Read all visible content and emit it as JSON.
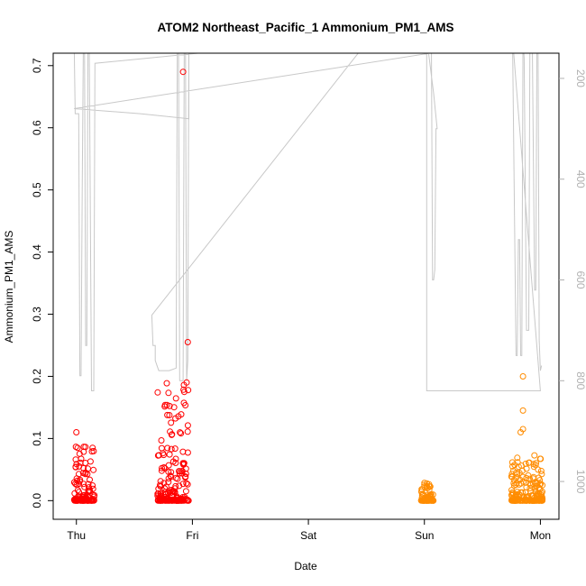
{
  "chart_data": {
    "type": "scatter",
    "title": "ATOM2 Northeast_Pacific_1 Ammonium_PM1_AMS",
    "xlabel": "Date",
    "ylabel": "Ammonium_PM1_AMS",
    "x_ticks": [
      "Thu",
      "Fri",
      "Sat",
      "Sun",
      "Mon"
    ],
    "x_tick_values": [
      0,
      1,
      2,
      3,
      4
    ],
    "xlim": [
      -0.2,
      4.16
    ],
    "ylim": [
      -0.03,
      0.72
    ],
    "y_ticks": [
      0.0,
      0.1,
      0.2,
      0.3,
      0.4,
      0.5,
      0.6,
      0.7
    ],
    "y2_ticks": [
      200,
      400,
      600,
      800,
      1000
    ],
    "y2_reversed": true,
    "y2lim": [
      150,
      1075
    ],
    "grid": false,
    "series": [
      {
        "color": "#ff0000",
        "clusters": [
          {
            "x_start": -0.02,
            "x_end": 0.16,
            "y_max": 0.09
          },
          {
            "x_start": 0.7,
            "x_end": 0.97,
            "y_max": 0.19
          }
        ],
        "outliers": [
          {
            "x": 0.0,
            "y": 0.11
          },
          {
            "x": 0.14,
            "y": 0.085
          },
          {
            "x": 0.08,
            "y": 0.045
          },
          {
            "x": 0.82,
            "y": 0.083
          },
          {
            "x": 0.81,
            "y": 0.04
          },
          {
            "x": 0.92,
            "y": 0.69
          },
          {
            "x": 0.96,
            "y": 0.255
          },
          {
            "x": 0.95,
            "y": 0.19
          },
          {
            "x": 0.93,
            "y": 0.175
          }
        ]
      },
      {
        "color": "#ff8c00",
        "clusters": [
          {
            "x_start": 2.97,
            "x_end": 3.08,
            "y_max": 0.03
          },
          {
            "x_start": 3.75,
            "x_end": 4.02,
            "y_max": 0.08
          }
        ],
        "outliers": [
          {
            "x": 3.85,
            "y": 0.2
          },
          {
            "x": 3.85,
            "y": 0.145
          },
          {
            "x": 3.85,
            "y": 0.115
          },
          {
            "x": 3.83,
            "y": 0.11
          },
          {
            "x": 3.76,
            "y": 0.055
          }
        ]
      }
    ],
    "altitude_line": {
      "color": "#c8c8c8",
      "axis": "right",
      "points": [
        [
          -0.02,
          120
        ],
        [
          -0.01,
          270
        ],
        [
          0.02,
          270
        ],
        [
          0.03,
          790
        ],
        [
          0.04,
          790
        ],
        [
          0.05,
          420
        ],
        [
          0.06,
          120
        ],
        [
          0.07,
          120
        ],
        [
          0.08,
          730
        ],
        [
          0.09,
          730
        ],
        [
          0.1,
          120
        ],
        [
          0.11,
          110
        ],
        [
          0.13,
          820
        ],
        [
          0.15,
          820
        ],
        [
          0.16,
          170
        ],
        [
          1.05,
          150
        ],
        [
          2.35,
          150
        ],
        [
          2.6,
          120
        ],
        [
          2.6,
          100
        ],
        [
          0.65,
          670
        ],
        [
          0.66,
          730
        ],
        [
          0.68,
          730
        ],
        [
          0.68,
          760
        ],
        [
          0.71,
          780
        ],
        [
          0.73,
          780
        ],
        [
          0.8,
          780
        ],
        [
          0.86,
          775
        ],
        [
          0.87,
          120
        ],
        [
          0.88,
          120
        ],
        [
          0.89,
          800
        ],
        [
          0.92,
          800
        ],
        [
          0.93,
          120
        ],
        [
          0.94,
          110
        ],
        [
          0.95,
          800
        ],
        [
          0.96,
          760
        ],
        [
          0.97,
          120
        ],
        [
          0.97,
          280
        ],
        [
          0.55,
          270
        ],
        [
          -0.02,
          260
        ],
        [
          3.05,
          150
        ],
        [
          3.06,
          120
        ],
        [
          3.07,
          600
        ],
        [
          3.08,
          600
        ],
        [
          3.09,
          580
        ],
        [
          3.1,
          300
        ],
        [
          3.11,
          300
        ],
        [
          3.08,
          230
        ],
        [
          3.02,
          120
        ],
        [
          3.02,
          820
        ],
        [
          3.2,
          820
        ],
        [
          3.72,
          820
        ],
        [
          4.0,
          820
        ],
        [
          3.76,
          120
        ],
        [
          3.79,
          750
        ],
        [
          3.8,
          750
        ],
        [
          3.81,
          520
        ],
        [
          3.82,
          520
        ],
        [
          3.83,
          750
        ],
        [
          3.84,
          750
        ],
        [
          3.85,
          120
        ],
        [
          3.86,
          160
        ],
        [
          3.88,
          700
        ],
        [
          3.9,
          700
        ],
        [
          3.91,
          120
        ],
        [
          3.93,
          120
        ],
        [
          3.95,
          620
        ],
        [
          3.96,
          620
        ],
        [
          3.97,
          120
        ],
        [
          3.98,
          120
        ],
        [
          3.99,
          720
        ],
        [
          4.0,
          780
        ],
        [
          4.01,
          770
        ]
      ]
    }
  }
}
